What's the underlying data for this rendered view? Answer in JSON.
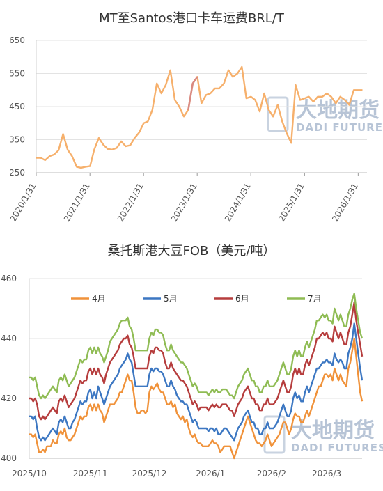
{
  "chart_data": [
    {
      "type": "line",
      "title": "MT至Santos港口卡车运费BRL/T",
      "ylim": [
        250,
        650
      ],
      "yticks": [
        250,
        350,
        450,
        550,
        650
      ],
      "xticks": [
        "2020/1/31",
        "2021/1/31",
        "2022/1/31",
        "2023/1/31",
        "2024/1/31",
        "2025/1/31",
        "2026/1/31"
      ],
      "grid": "horizontal",
      "colors": {
        "main": "#f6b06c",
        "highlight": "#d98a82"
      },
      "watermark": {
        "cn": "大地期货",
        "en": "DADI FUTURES"
      },
      "series": [
        {
          "x": [
            "2020/1/31",
            "2020/3/1",
            "2020/4/1",
            "2020/5/1",
            "2020/6/1",
            "2020/7/1",
            "2020/8/1",
            "2020/9/1",
            "2020/10/1",
            "2020/11/1",
            "2020/12/1",
            "2021/1/1",
            "2021/2/1",
            "2021/3/1",
            "2021/4/1",
            "2021/5/1",
            "2021/6/1",
            "2021/7/1",
            "2021/8/1",
            "2021/9/1",
            "2021/10/1",
            "2021/11/1",
            "2021/12/1",
            "2022/1/1",
            "2022/2/1",
            "2022/3/1",
            "2022/4/1",
            "2022/5/1",
            "2022/6/1",
            "2022/7/1",
            "2022/8/1",
            "2022/9/1",
            "2022/10/1",
            "2022/11/1",
            "2022/12/1",
            "2023/1/1",
            "2023/2/1",
            "2023/3/1",
            "2023/4/1",
            "2023/5/1",
            "2023/6/1",
            "2023/7/1",
            "2023/8/1",
            "2023/9/1",
            "2023/10/1",
            "2023/11/1",
            "2023/12/1",
            "2024/1/1",
            "2024/2/1",
            "2024/3/1",
            "2024/4/1",
            "2024/5/1",
            "2024/6/1",
            "2024/7/1",
            "2024/8/1",
            "2024/9/1",
            "2024/10/1",
            "2024/11/1",
            "2024/12/1",
            "2025/1/1",
            "2025/2/1",
            "2025/3/1",
            "2025/4/1",
            "2025/5/1",
            "2025/6/1",
            "2025/7/1",
            "2025/8/1",
            "2025/9/1",
            "2025/10/1",
            "2025/11/1",
            "2025/12/1",
            "2026/1/1",
            "2026/2/1",
            "2026/3/1"
          ],
          "values": [
            295,
            295,
            288,
            300,
            305,
            318,
            367,
            320,
            300,
            268,
            265,
            268,
            270,
            320,
            355,
            335,
            322,
            320,
            325,
            345,
            330,
            333,
            355,
            372,
            400,
            405,
            440,
            520,
            490,
            515,
            560,
            470,
            450,
            420,
            440,
            520,
            540,
            460,
            485,
            490,
            505,
            505,
            520,
            560,
            540,
            550,
            570,
            475,
            480,
            470,
            435,
            490,
            440,
            420,
            455,
            405,
            370,
            340,
            515,
            470,
            475,
            480,
            465,
            480,
            480,
            490,
            480,
            460,
            480,
            470,
            455,
            500,
            500,
            500
          ]
        }
      ]
    },
    {
      "type": "line",
      "title": "桑托斯港大豆FOB（美元/吨）",
      "ylim": [
        400,
        460
      ],
      "yticks": [
        400,
        420,
        440,
        460
      ],
      "xticks": [
        "2025/10",
        "2025/11",
        "2025/12",
        "2026/1",
        "2026/2",
        "2026/3"
      ],
      "grid": "horizontal",
      "legend": "top",
      "watermark": {
        "cn": "大地期货",
        "en": "DADI FUTURES"
      },
      "x": {
        "start": "2025/10/1",
        "end": "2026/3/17",
        "step_days": 1
      },
      "series": [
        {
          "name": "4月",
          "color": "#f0923a",
          "values": [
            408,
            408,
            407,
            408,
            405,
            402,
            402,
            403,
            402,
            404,
            404,
            404,
            406,
            405,
            405,
            408,
            409,
            408,
            410,
            407,
            406,
            406,
            407,
            408,
            410,
            412,
            414,
            413,
            414,
            414,
            417,
            418,
            416,
            418,
            416,
            418,
            416,
            415,
            412,
            414,
            416,
            418,
            418,
            418,
            419,
            420,
            422,
            422,
            424,
            426,
            428,
            426,
            426,
            422,
            417,
            415,
            415,
            416,
            416,
            415,
            416,
            422,
            424,
            423,
            424,
            425,
            423,
            422,
            422,
            420,
            418,
            418,
            419,
            417,
            418,
            415,
            414,
            413,
            414,
            412,
            413,
            410,
            408,
            407,
            408,
            406,
            405,
            405,
            404,
            404,
            404,
            404,
            405,
            406,
            405,
            405,
            404,
            402,
            403,
            404,
            404,
            404,
            404,
            402,
            400,
            402,
            404,
            406,
            408,
            410,
            412,
            414,
            412,
            410,
            408,
            406,
            405,
            405,
            404,
            405,
            406,
            408,
            406,
            404,
            405,
            406,
            407,
            408,
            410,
            412,
            412,
            410,
            408,
            410,
            413,
            415,
            414,
            414,
            412,
            412,
            414,
            416,
            414,
            416,
            418,
            420,
            422,
            424,
            424,
            426,
            428,
            428,
            427,
            428,
            426,
            430,
            428,
            426,
            428,
            426,
            425,
            424,
            430,
            432,
            436,
            440,
            434,
            428,
            422,
            419
          ]
        },
        {
          "name": "5月",
          "color": "#3c77c2",
          "values": [
            414,
            414,
            413,
            414,
            410,
            407,
            406,
            407,
            406,
            407,
            408,
            409,
            410,
            409,
            408,
            412,
            413,
            412,
            414,
            412,
            410,
            410,
            412,
            413,
            415,
            417,
            419,
            418,
            419,
            419,
            422,
            423,
            420,
            422,
            420,
            424,
            422,
            420,
            418,
            420,
            422,
            424,
            425,
            426,
            427,
            428,
            430,
            431,
            432,
            433,
            435,
            433,
            432,
            428,
            424,
            424,
            424,
            424,
            424,
            424,
            424,
            428,
            430,
            429,
            430,
            430,
            429,
            429,
            428,
            426,
            424,
            424,
            426,
            424,
            423,
            421,
            420,
            419,
            419,
            418,
            418,
            416,
            414,
            412,
            413,
            412,
            410,
            410,
            410,
            410,
            410,
            409,
            410,
            410,
            409,
            410,
            408,
            408,
            409,
            410,
            410,
            409,
            408,
            407,
            406,
            408,
            410,
            411,
            412,
            414,
            415,
            416,
            414,
            412,
            412,
            410,
            410,
            408,
            408,
            410,
            410,
            412,
            410,
            410,
            410,
            411,
            412,
            414,
            416,
            418,
            416,
            414,
            414,
            416,
            420,
            422,
            420,
            421,
            419,
            419,
            422,
            424,
            422,
            424,
            426,
            428,
            430,
            430,
            431,
            432,
            432,
            433,
            432,
            432,
            431,
            435,
            433,
            432,
            433,
            432,
            430,
            430,
            435,
            437,
            440,
            445,
            440,
            435,
            430,
            426
          ]
        },
        {
          "name": "6月",
          "color": "#b63d3d",
          "values": [
            420,
            420,
            419,
            420,
            418,
            414,
            413,
            414,
            413,
            414,
            415,
            416,
            417,
            416,
            415,
            419,
            420,
            419,
            421,
            419,
            417,
            418,
            419,
            420,
            422,
            424,
            426,
            425,
            426,
            426,
            429,
            430,
            428,
            430,
            428,
            430,
            428,
            427,
            425,
            428,
            430,
            432,
            433,
            434,
            435,
            436,
            438,
            439,
            440,
            440,
            441,
            438,
            437,
            434,
            430,
            430,
            430,
            430,
            430,
            430,
            430,
            434,
            436,
            435,
            437,
            437,
            436,
            436,
            435,
            432,
            430,
            430,
            432,
            430,
            429,
            428,
            427,
            426,
            426,
            425,
            424,
            422,
            420,
            418,
            419,
            418,
            416,
            417,
            417,
            417,
            417,
            416,
            417,
            418,
            417,
            418,
            417,
            417,
            418,
            418,
            418,
            417,
            416,
            416,
            414,
            416,
            418,
            419,
            420,
            422,
            423,
            424,
            422,
            420,
            420,
            418,
            418,
            416,
            416,
            418,
            418,
            420,
            418,
            418,
            418,
            419,
            420,
            422,
            424,
            426,
            424,
            422,
            422,
            424,
            428,
            430,
            428,
            430,
            428,
            428,
            431,
            433,
            431,
            433,
            435,
            437,
            440,
            440,
            441,
            442,
            441,
            442,
            440,
            440,
            439,
            444,
            442,
            440,
            442,
            440,
            438,
            438,
            442,
            444,
            448,
            452,
            446,
            442,
            438,
            434
          ]
        },
        {
          "name": "7月",
          "color": "#8fbc54",
          "values": [
            427,
            427,
            426,
            427,
            424,
            421,
            420,
            421,
            420,
            421,
            422,
            423,
            424,
            423,
            422,
            426,
            427,
            426,
            428,
            426,
            424,
            425,
            426,
            427,
            429,
            431,
            433,
            432,
            433,
            433,
            436,
            437,
            435,
            437,
            435,
            437,
            435,
            434,
            432,
            434,
            436,
            439,
            440,
            441,
            442,
            443,
            445,
            446,
            446,
            446,
            447,
            444,
            443,
            440,
            436,
            436,
            436,
            436,
            436,
            436,
            436,
            440,
            442,
            441,
            443,
            443,
            442,
            442,
            441,
            438,
            436,
            436,
            438,
            436,
            435,
            434,
            433,
            432,
            432,
            431,
            430,
            428,
            426,
            424,
            425,
            424,
            422,
            422,
            422,
            422,
            422,
            421,
            422,
            423,
            422,
            423,
            422,
            422,
            423,
            423,
            423,
            422,
            421,
            421,
            420,
            422,
            424,
            425,
            426,
            428,
            429,
            430,
            428,
            426,
            426,
            424,
            424,
            422,
            422,
            424,
            424,
            426,
            424,
            424,
            424,
            425,
            426,
            428,
            430,
            432,
            430,
            428,
            428,
            430,
            434,
            436,
            434,
            436,
            434,
            434,
            437,
            439,
            437,
            439,
            441,
            443,
            446,
            446,
            447,
            448,
            447,
            448,
            446,
            446,
            445,
            450,
            448,
            446,
            448,
            446,
            444,
            444,
            448,
            450,
            453,
            455,
            450,
            446,
            442,
            440
          ]
        }
      ]
    }
  ]
}
